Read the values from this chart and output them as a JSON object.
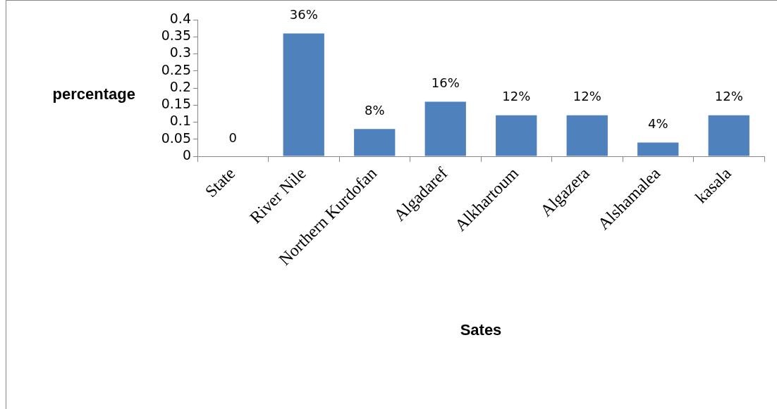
{
  "chart_data": {
    "type": "bar",
    "xlabel": "Sates",
    "ylabel": "percentage",
    "categories": [
      "State",
      "River Nile",
      "Northern Kurdofan",
      "Algadaref",
      "Alkhartoum",
      "Algazera",
      "Alshamalea",
      "kasala"
    ],
    "values": [
      0,
      0.36,
      0.08,
      0.16,
      0.12,
      0.12,
      0.04,
      0.12
    ],
    "value_labels": [
      "0",
      "36%",
      "8%",
      "16%",
      "12%",
      "12%",
      "4%",
      "12%"
    ],
    "color": "#4f81bd",
    "ylim": [
      0,
      0.4
    ],
    "yticks": [
      0,
      0.05,
      0.1,
      0.15,
      0.2,
      0.25,
      0.3,
      0.35,
      0.4
    ],
    "grid": false,
    "legend": false
  }
}
